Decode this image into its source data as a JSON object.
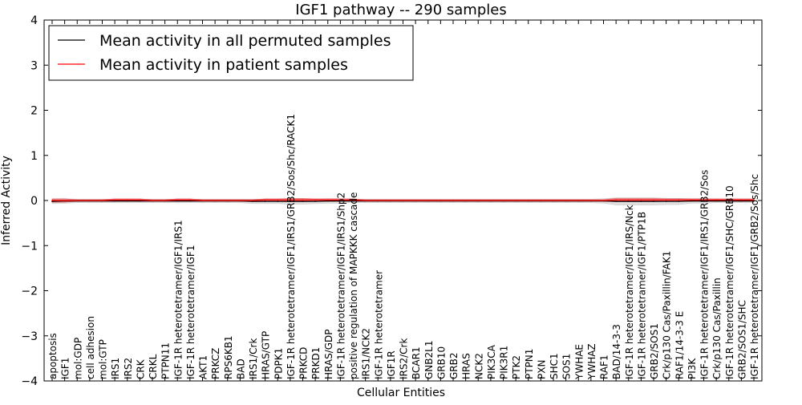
{
  "chart_data": {
    "type": "line",
    "title": "IGF1 pathway -- 290 samples",
    "xlabel": "Cellular Entities",
    "ylabel": "Inferred Activity",
    "ylim": [
      -4,
      4
    ],
    "yticks": [
      "4",
      "3",
      "2",
      "1",
      "0",
      "−1",
      "−2",
      "−3",
      "−4"
    ],
    "ytick_values": [
      4,
      3,
      2,
      1,
      0,
      -1,
      -2,
      -3,
      -4
    ],
    "legend_position": "top-left",
    "categories": [
      "apoptosis",
      "IGF1",
      "mol:GDP",
      "cell adhesion",
      "mol:GTP",
      "IRS1",
      "IRS2",
      "CRK",
      "CRKL",
      "PTPN11",
      "IGF-1R heterotetramer/IGF1/IRS1",
      "IGF-1R heterotetramer/IGF1",
      "AKT1",
      "PRKCZ",
      "RPS6KB1",
      "BAD",
      "IRS1/Crk",
      "HRAS/GTP",
      "PDPK1",
      "IGF-1R heterotetramer/IGF1/IRS1/GRB2/Sos/Shc/RACK1",
      "PRKCD",
      "PRKD1",
      "HRAS/GDP",
      "IGF-1R heterotetramer/IGF1/IRS1/Shp2",
      "positive regulation of MAPKKK cascade",
      "IRS1/NCK2",
      "IGF-1R heterotetramer",
      "IGF1R",
      "IRS2/Crk",
      "BCAR1",
      "GNB2L1",
      "GRB10",
      "GRB2",
      "HRAS",
      "NCK2",
      "PIK3CA",
      "PIK3R1",
      "PTK2",
      "PTPN1",
      "PXN",
      "SHC1",
      "SOS1",
      "YWHAE",
      "YWHAZ",
      "RAF1",
      "BAD/14-3-3",
      "IGF-1R heterotetramer/IGF1/IRS/Nck",
      "IGF-1R heterotetramer/IGF1/PTP1B",
      "GRB2/SOS1",
      "Crk/p130 Cas/Paxillin/FAK1",
      "RAF1/14-3-3 E",
      "PI3K",
      "IGF-1R heterotetramer/IGF1/IRS1/GRB2/Sos",
      "Crk/p130 Cas/Paxillin",
      "IGF-1R heterotetramer/IGF1/SHC/GRB10",
      "GRB2/SOS1/SHC",
      "IGF-1R heterotetramer/IGF1/GRB2/Sos/Shc"
    ],
    "series": [
      {
        "name": "Mean activity in all permuted samples",
        "color": "#000000",
        "values": [
          -0.02,
          -0.01,
          -0.01,
          -0.01,
          -0.01,
          -0.01,
          -0.01,
          -0.01,
          -0.01,
          -0.01,
          -0.01,
          -0.01,
          -0.01,
          -0.01,
          -0.01,
          -0.01,
          -0.02,
          -0.02,
          -0.02,
          -0.02,
          -0.02,
          -0.02,
          -0.01,
          -0.01,
          -0.01,
          -0.01,
          -0.01,
          -0.01,
          -0.01,
          -0.01,
          -0.01,
          -0.01,
          -0.01,
          -0.01,
          -0.01,
          -0.01,
          -0.01,
          -0.01,
          -0.01,
          -0.01,
          -0.01,
          -0.01,
          -0.01,
          -0.01,
          -0.01,
          -0.02,
          -0.02,
          -0.02,
          -0.02,
          -0.02,
          -0.02,
          -0.01,
          -0.01,
          -0.01,
          -0.01,
          -0.01,
          -0.01
        ],
        "band": [
          0.05,
          0.05,
          0.04,
          0.04,
          0.04,
          0.04,
          0.04,
          0.04,
          0.04,
          0.04,
          0.04,
          0.04,
          0.04,
          0.04,
          0.04,
          0.04,
          0.05,
          0.05,
          0.05,
          0.06,
          0.06,
          0.05,
          0.05,
          0.05,
          0.04,
          0.04,
          0.04,
          0.04,
          0.04,
          0.04,
          0.04,
          0.04,
          0.04,
          0.04,
          0.04,
          0.04,
          0.04,
          0.04,
          0.04,
          0.04,
          0.04,
          0.04,
          0.04,
          0.04,
          0.05,
          0.08,
          0.08,
          0.08,
          0.08,
          0.07,
          0.07,
          0.05,
          0.05,
          0.04,
          0.04,
          0.04,
          0.04
        ]
      },
      {
        "name": "Mean activity in patient samples",
        "color": "#ff0000",
        "values": [
          0.0,
          0.0,
          0.0,
          0.0,
          0.0,
          0.01,
          0.01,
          0.01,
          0.0,
          0.0,
          0.01,
          0.01,
          0.0,
          0.0,
          0.0,
          0.0,
          0.0,
          0.01,
          0.01,
          0.01,
          0.01,
          0.01,
          0.01,
          0.01,
          0.01,
          0.0,
          0.0,
          0.0,
          0.0,
          0.0,
          0.0,
          0.0,
          0.0,
          0.0,
          0.0,
          0.0,
          0.0,
          0.0,
          0.0,
          0.0,
          0.0,
          0.0,
          0.0,
          0.0,
          0.0,
          0.01,
          0.01,
          0.01,
          0.01,
          0.01,
          0.01,
          0.01,
          0.01,
          0.01,
          0.01,
          0.01,
          0.01
        ],
        "band": [
          0.04,
          0.04,
          0.02,
          0.02,
          0.02,
          0.03,
          0.03,
          0.03,
          0.02,
          0.02,
          0.03,
          0.03,
          0.02,
          0.02,
          0.02,
          0.02,
          0.02,
          0.03,
          0.03,
          0.04,
          0.04,
          0.03,
          0.03,
          0.03,
          0.03,
          0.02,
          0.02,
          0.02,
          0.02,
          0.02,
          0.02,
          0.02,
          0.02,
          0.02,
          0.02,
          0.02,
          0.02,
          0.02,
          0.02,
          0.02,
          0.02,
          0.02,
          0.02,
          0.02,
          0.02,
          0.04,
          0.04,
          0.04,
          0.04,
          0.03,
          0.03,
          0.03,
          0.03,
          0.03,
          0.03,
          0.03,
          0.03
        ]
      }
    ]
  }
}
